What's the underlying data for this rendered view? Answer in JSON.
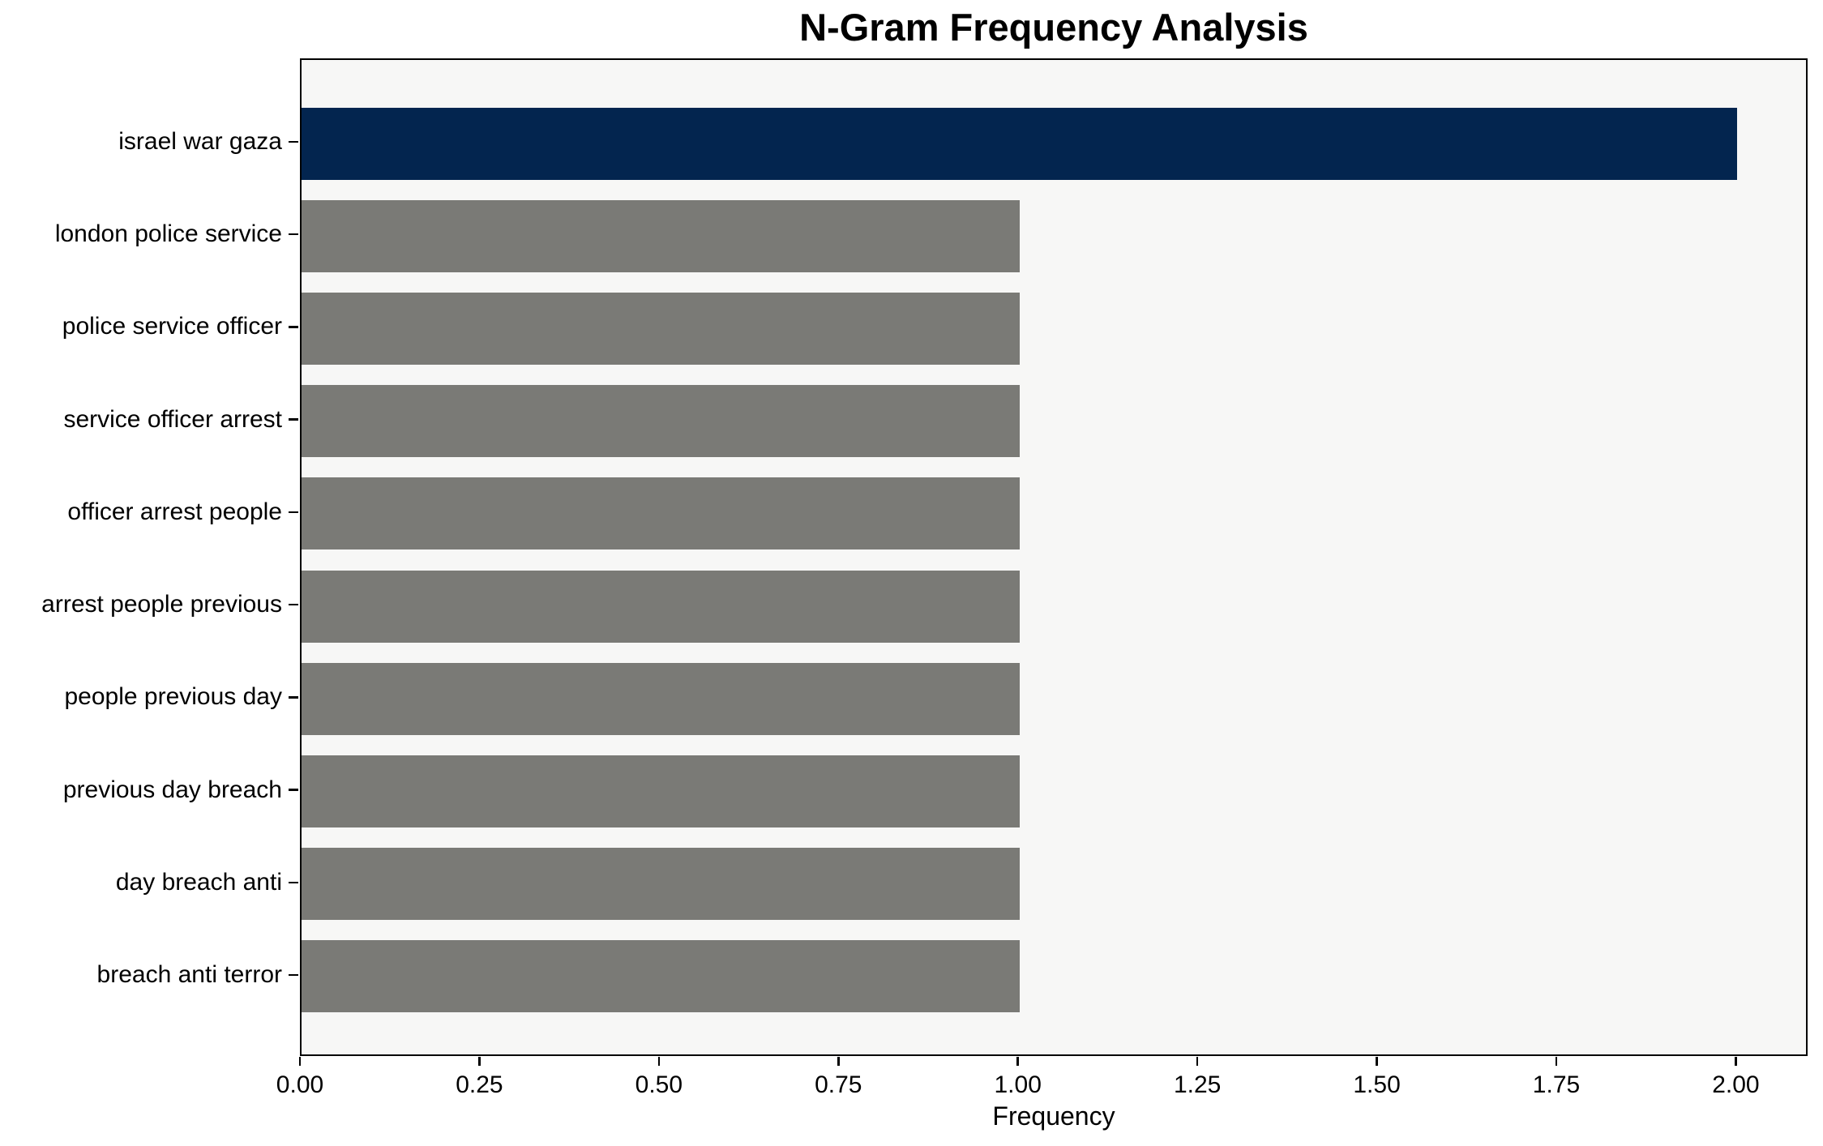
{
  "chart_data": {
    "type": "bar",
    "orientation": "horizontal",
    "title": "N-Gram Frequency Analysis",
    "xlabel": "Frequency",
    "ylabel": "",
    "categories": [
      "israel war gaza",
      "london police service",
      "police service officer",
      "service officer arrest",
      "officer arrest people",
      "arrest people previous",
      "people previous day",
      "previous day breach",
      "day breach anti",
      "breach anti terror"
    ],
    "values": [
      2,
      1,
      1,
      1,
      1,
      1,
      1,
      1,
      1,
      1
    ],
    "bar_colors": [
      "#03254f",
      "#7a7a76",
      "#7a7a76",
      "#7a7a76",
      "#7a7a76",
      "#7a7a76",
      "#7a7a76",
      "#7a7a76",
      "#7a7a76",
      "#7a7a76"
    ],
    "xlim": [
      0,
      2.1
    ],
    "xticks": [
      0.0,
      0.25,
      0.5,
      0.75,
      1.0,
      1.25,
      1.5,
      1.75,
      2.0
    ],
    "xtick_labels": [
      "0.00",
      "0.25",
      "0.50",
      "0.75",
      "1.00",
      "1.25",
      "1.50",
      "1.75",
      "2.00"
    ],
    "grid": false,
    "legend": null,
    "colors": {
      "highlight_bar": "#03254f",
      "default_bar": "#7a7a76",
      "plot_background": "#f7f7f6",
      "figure_background": "#ffffff",
      "spine": "#000000",
      "text": "#000000"
    }
  }
}
